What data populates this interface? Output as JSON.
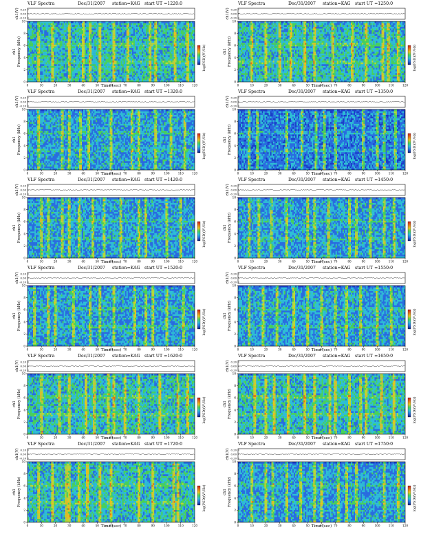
{
  "page": {
    "title": "VLF Spectra",
    "date": "Dec/31/2007",
    "station": "station=KAG",
    "start_prefix": "start  UT  =",
    "ch_axis_label": "ch1(V)",
    "ch_ticks": [
      "0.20",
      "0.00",
      "-0.20"
    ],
    "freq_axis_label_ch": "ch1",
    "freq_axis_label": "Frequency  (kHz)",
    "freq_ticks": [
      "0",
      "2",
      "4",
      "6",
      "8",
      "10"
    ],
    "time_axis_label": "Time  (sec)",
    "time_ticks": [
      "0",
      "10",
      "20",
      "30",
      "40",
      "50",
      "60",
      "70",
      "80",
      "90",
      "100",
      "110",
      "120"
    ],
    "colorbar_label": "log(PSD)(V²/Hz)"
  },
  "colors": {
    "spectrogram_low": "#1a3cc8",
    "spectrogram_mid": "#2fbfd6",
    "spectrogram_high": "#49d35a",
    "spectrogram_peak": "#e8c21f",
    "spectrogram_max": "#c8221a",
    "colorbar_top": "#d01818",
    "colorbar_bottom": "#102080"
  },
  "chart_data": [
    {
      "type": "heatmap",
      "title": "VLF Spectra",
      "start": "1220:0",
      "xlabel": "Time (sec)",
      "ylabel": "Frequency (kHz)",
      "xlim": [
        0,
        120
      ],
      "ylim": [
        0,
        10
      ],
      "intensity": "high",
      "bursts": [
        8,
        18,
        30,
        40,
        45,
        52,
        62,
        72,
        88,
        92,
        106,
        115
      ]
    },
    {
      "type": "heatmap",
      "title": "VLF Spectra",
      "start": "1250:0",
      "xlabel": "Time (sec)",
      "ylabel": "Frequency (kHz)",
      "xlim": [
        0,
        120
      ],
      "ylim": [
        0,
        10
      ],
      "intensity": "high",
      "bursts": [
        10,
        20,
        30,
        38,
        48,
        55,
        68,
        82,
        92,
        104,
        108,
        115
      ]
    },
    {
      "type": "heatmap",
      "title": "VLF Spectra",
      "start": "1320:0",
      "xlabel": "Time (sec)",
      "ylabel": "Frequency (kHz)",
      "xlim": [
        0,
        120
      ],
      "ylim": [
        0,
        10
      ],
      "intensity": "medium",
      "bursts": [
        8,
        25,
        30,
        38,
        44,
        60,
        75,
        80,
        92,
        103,
        113
      ]
    },
    {
      "type": "heatmap",
      "title": "VLF Spectra",
      "start": "1350:0",
      "xlabel": "Time (sec)",
      "ylabel": "Frequency (kHz)",
      "xlim": [
        0,
        120
      ],
      "ylim": [
        0,
        10
      ],
      "intensity": "low",
      "bursts": [
        8,
        14,
        35,
        46,
        56,
        62,
        70,
        90,
        100,
        105,
        113
      ]
    },
    {
      "type": "heatmap",
      "title": "VLF Spectra",
      "start": "1420:0",
      "xlabel": "Time (sec)",
      "ylabel": "Frequency (kHz)",
      "xlim": [
        0,
        120
      ],
      "ylim": [
        0,
        10
      ],
      "intensity": "medium",
      "bursts": [
        10,
        15,
        25,
        30,
        37,
        47,
        55,
        67,
        80,
        85,
        100,
        110
      ]
    },
    {
      "type": "heatmap",
      "title": "VLF Spectra",
      "start": "1450:0",
      "xlabel": "Time (sec)",
      "ylabel": "Frequency (kHz)",
      "xlim": [
        0,
        120
      ],
      "ylim": [
        0,
        10
      ],
      "intensity": "medium",
      "bursts": [
        8,
        15,
        24,
        35,
        50,
        55,
        65,
        80,
        85,
        95,
        105,
        112
      ]
    },
    {
      "type": "heatmap",
      "title": "VLF Spectra",
      "start": "1520:0",
      "xlabel": "Time (sec)",
      "ylabel": "Frequency (kHz)",
      "xlim": [
        0,
        120
      ],
      "ylim": [
        0,
        10
      ],
      "intensity": "medium",
      "bursts": [
        5,
        15,
        20,
        33,
        45,
        52,
        62,
        77,
        85,
        90,
        100,
        112
      ]
    },
    {
      "type": "heatmap",
      "title": "VLF Spectra",
      "start": "1550:0",
      "xlabel": "Time (sec)",
      "ylabel": "Frequency (kHz)",
      "xlim": [
        0,
        120
      ],
      "ylim": [
        0,
        10
      ],
      "intensity": "medium",
      "bursts": [
        8,
        18,
        28,
        40,
        50,
        60,
        70,
        78,
        88,
        100,
        110
      ]
    },
    {
      "type": "heatmap",
      "title": "VLF Spectra",
      "start": "1620:0",
      "xlabel": "Time (sec)",
      "ylabel": "Frequency (kHz)",
      "xlim": [
        0,
        120
      ],
      "ylim": [
        0,
        10
      ],
      "intensity": "high",
      "bursts": [
        10,
        23,
        30,
        42,
        48,
        58,
        62,
        70,
        80,
        95,
        108,
        115
      ]
    },
    {
      "type": "heatmap",
      "title": "VLF Spectra",
      "start": "1650:0",
      "xlabel": "Time (sec)",
      "ylabel": "Frequency (kHz)",
      "xlim": [
        0,
        120
      ],
      "ylim": [
        0,
        10
      ],
      "intensity": "high",
      "bursts": [
        12,
        20,
        26,
        36,
        48,
        55,
        66,
        70,
        80,
        88,
        92,
        103,
        112
      ]
    },
    {
      "type": "heatmap",
      "title": "VLF Spectra",
      "start": "1720:0",
      "xlabel": "Time (sec)",
      "ylabel": "Frequency (kHz)",
      "xlim": [
        0,
        120
      ],
      "ylim": [
        0,
        10
      ],
      "intensity": "high",
      "bursts": [
        8,
        18,
        28,
        30,
        37,
        43,
        52,
        60,
        80,
        90,
        105,
        108
      ]
    },
    {
      "type": "heatmap",
      "title": "VLF Spectra",
      "start": "1750:0",
      "xlabel": "Time (sec)",
      "ylabel": "Frequency (kHz)",
      "xlim": [
        0,
        120
      ],
      "ylim": [
        0,
        10
      ],
      "intensity": "medium",
      "bursts": [
        10,
        20,
        25,
        35,
        45,
        55,
        60,
        72,
        78,
        85,
        105,
        115
      ]
    }
  ]
}
